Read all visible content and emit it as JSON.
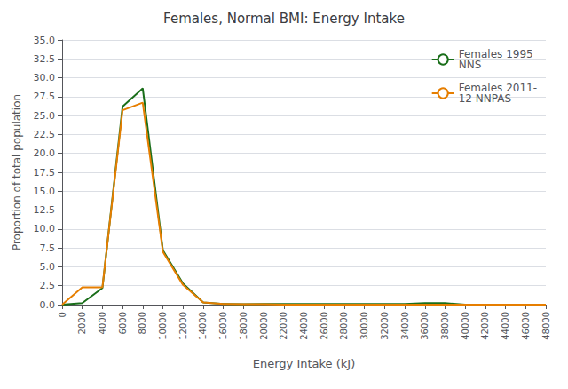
{
  "chart_data": {
    "type": "line",
    "title": "Females, Normal BMI: Energy Intake",
    "xlabel": "Energy Intake (kJ)",
    "ylabel": "Proportion of total population",
    "x": [
      0,
      2000,
      4000,
      6000,
      8000,
      10000,
      12000,
      14000,
      16000,
      18000,
      20000,
      22000,
      24000,
      26000,
      28000,
      30000,
      32000,
      34000,
      36000,
      38000,
      40000,
      42000,
      44000,
      46000,
      48000
    ],
    "series": [
      {
        "name": "Females 1995\nNNS",
        "color": "#1a6e1a",
        "values": [
          0.0,
          0.2,
          2.2,
          26.2,
          28.6,
          7.2,
          2.8,
          0.3,
          0.1,
          0.05,
          0.1,
          0.1,
          0.1,
          0.1,
          0.1,
          0.1,
          0.1,
          0.1,
          0.2,
          0.2,
          0.0,
          0.0,
          0.0,
          0.0,
          0.0
        ]
      },
      {
        "name": "Females 2011-\n12 NNPAS",
        "color": "#e67e00",
        "values": [
          0.0,
          2.3,
          2.3,
          25.7,
          26.7,
          7.0,
          2.6,
          0.3,
          0.1,
          0.05,
          0.05,
          0.0,
          0.0,
          0.0,
          0.0,
          0.0,
          0.0,
          0.0,
          0.0,
          0.0,
          0.0,
          0.0,
          0.0,
          0.0,
          0.0
        ]
      }
    ],
    "xlim": [
      0,
      48000
    ],
    "xticks": [
      0,
      2000,
      4000,
      6000,
      8000,
      10000,
      12000,
      14000,
      16000,
      18000,
      20000,
      22000,
      24000,
      26000,
      28000,
      30000,
      32000,
      34000,
      36000,
      38000,
      40000,
      42000,
      44000,
      46000,
      48000
    ],
    "ylim": [
      0,
      35.0
    ],
    "yticks": [
      {
        "value": 0,
        "label": "0.0"
      },
      2.5,
      {
        "value": 5,
        "label": "5.0"
      },
      7.5,
      {
        "value": 10,
        "label": "10.0"
      },
      12.5,
      {
        "value": 15,
        "label": "15.0"
      },
      17.5,
      {
        "value": 20,
        "label": "20.0"
      },
      22.5,
      {
        "value": 25,
        "label": "25.0"
      },
      27.5,
      {
        "value": 30,
        "label": "30.0"
      },
      32.5,
      {
        "value": 35,
        "label": "35.0"
      }
    ],
    "grid": true,
    "legend": "upper right"
  }
}
